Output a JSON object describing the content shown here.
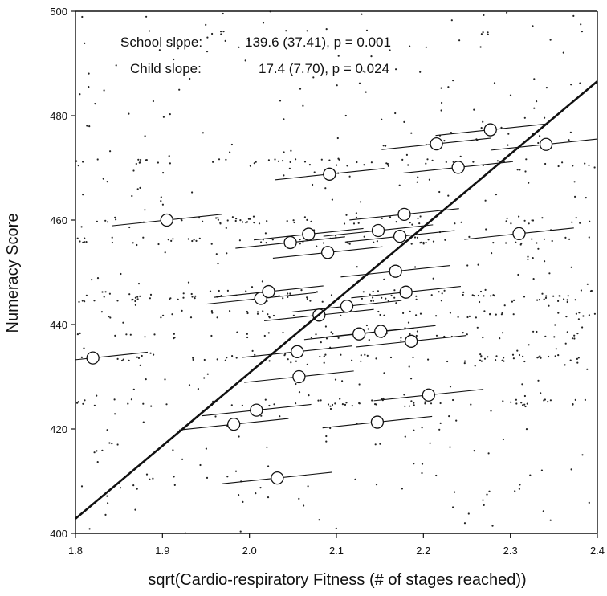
{
  "chart_data": {
    "type": "scatter",
    "xlabel": "sqrt(Cardio-respiratory Fitness (# of stages reached))",
    "ylabel": "Numeracy Score",
    "xlim": [
      1.8,
      2.4
    ],
    "ylim": [
      400,
      500
    ],
    "xticks": [
      "1.8",
      "1.9",
      "2.0",
      "2.1",
      "2.2",
      "2.3",
      "2.4"
    ],
    "yticks": [
      "400",
      "420",
      "440",
      "460",
      "480",
      "500"
    ],
    "grid": false,
    "annotations": [
      {
        "label": "School slope:",
        "value": "139.6 (37.41), p = 0.001"
      },
      {
        "label": "Child slope:",
        "value": "17.4 (7.70), p = 0.024"
      }
    ],
    "school_slope": 139.6,
    "child_slope": 17.4,
    "overall_line": {
      "x": [
        1.8,
        2.4
      ],
      "y": [
        402.8,
        486.6
      ]
    },
    "school_means": [
      {
        "x": 1.82,
        "y": 433.6
      },
      {
        "x": 1.905,
        "y": 460.0
      },
      {
        "x": 1.982,
        "y": 420.9
      },
      {
        "x": 2.008,
        "y": 423.6
      },
      {
        "x": 2.013,
        "y": 445.0
      },
      {
        "x": 2.022,
        "y": 446.3
      },
      {
        "x": 2.032,
        "y": 410.6
      },
      {
        "x": 2.047,
        "y": 455.7
      },
      {
        "x": 2.055,
        "y": 434.8
      },
      {
        "x": 2.057,
        "y": 430.0
      },
      {
        "x": 2.068,
        "y": 457.3
      },
      {
        "x": 2.08,
        "y": 441.8
      },
      {
        "x": 2.09,
        "y": 453.8
      },
      {
        "x": 2.092,
        "y": 468.8
      },
      {
        "x": 2.112,
        "y": 443.5
      },
      {
        "x": 2.126,
        "y": 438.2
      },
      {
        "x": 2.147,
        "y": 421.3
      },
      {
        "x": 2.148,
        "y": 458.0
      },
      {
        "x": 2.151,
        "y": 438.7
      },
      {
        "x": 2.168,
        "y": 450.2
      },
      {
        "x": 2.173,
        "y": 456.9
      },
      {
        "x": 2.178,
        "y": 461.1
      },
      {
        "x": 2.18,
        "y": 446.2
      },
      {
        "x": 2.186,
        "y": 436.8
      },
      {
        "x": 2.206,
        "y": 426.5
      },
      {
        "x": 2.215,
        "y": 474.6
      },
      {
        "x": 2.24,
        "y": 470.1
      },
      {
        "x": 2.277,
        "y": 477.3
      },
      {
        "x": 2.31,
        "y": 457.4
      },
      {
        "x": 2.341,
        "y": 474.5
      }
    ]
  },
  "style": {
    "line_color": "#111111",
    "marker_color": "#111111",
    "point_color": "#222222"
  }
}
